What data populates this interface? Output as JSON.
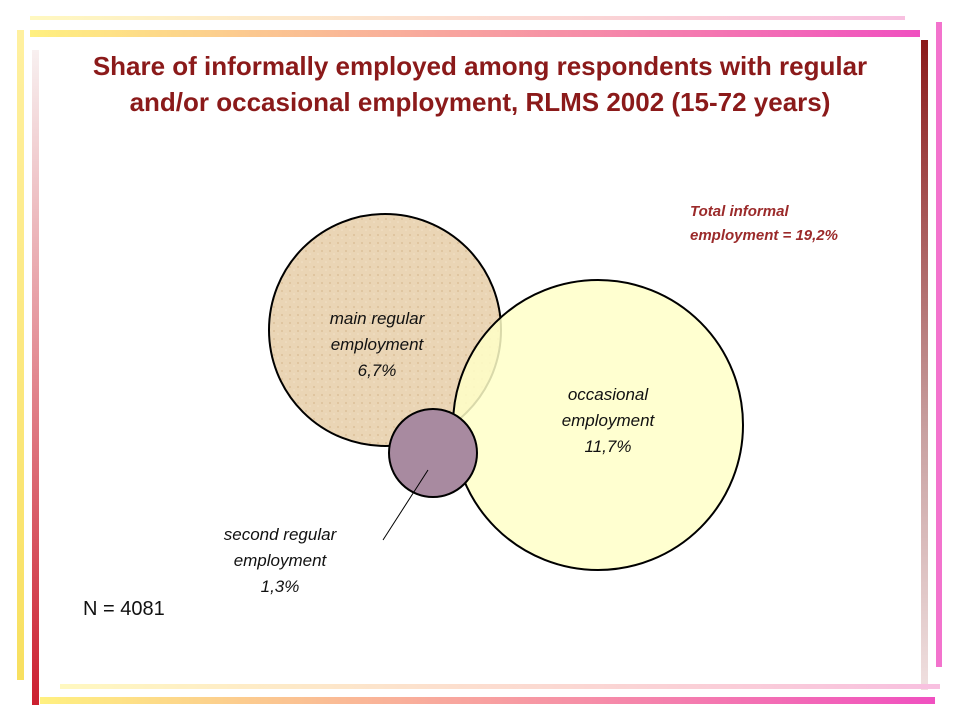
{
  "title": "Share of informally employed among respondents with regular and/or occasional employment, RLMS 2002 (15-72 years)",
  "note": "Total informal employment = 19,2%",
  "nodes": [
    {
      "label": "main regular employment",
      "value": "6,7%"
    },
    {
      "label": "occasional employment",
      "value": "11,7%"
    },
    {
      "label": "second regular employment",
      "value": "1,3%"
    }
  ],
  "sample": "N = 4081"
}
